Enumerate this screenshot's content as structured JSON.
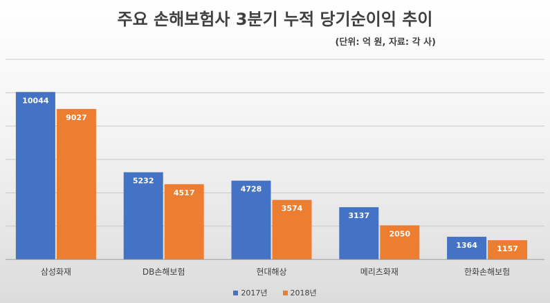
{
  "title": "주요 손해보험사 3분기 누적 당기순이익 추이",
  "subtitle": "(단위: 억 원, 자료: 각 사)",
  "chart_data": {
    "type": "bar",
    "categories": [
      "삼성화재",
      "DB손해보험",
      "현대해상",
      "메리츠화재",
      "한화손해보험"
    ],
    "series": [
      {
        "name": "2017년",
        "values": [
          10044,
          5232,
          4728,
          3137,
          1364
        ],
        "color": "#4472c4"
      },
      {
        "name": "2018년",
        "values": [
          9027,
          4517,
          3574,
          2050,
          1157
        ],
        "color": "#ed7d31"
      }
    ],
    "ylim": [
      0,
      12000
    ],
    "grid": true,
    "legend_position": "bottom",
    "data_labels": true
  }
}
